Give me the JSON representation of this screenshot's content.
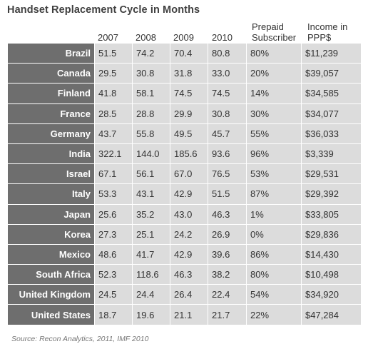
{
  "chart_data": {
    "type": "table",
    "title": "Handset Replacement Cycle in Months",
    "columns": [
      "2007",
      "2008",
      "2009",
      "2010",
      "Prepaid Subscriber",
      "Income in PPP$"
    ],
    "rows": [
      {
        "country": "Brazil",
        "values": [
          "51.5",
          "74.2",
          "70.4",
          "80.8",
          "80%",
          "$11,239"
        ]
      },
      {
        "country": "Canada",
        "values": [
          "29.5",
          "30.8",
          "31.8",
          "33.0",
          "20%",
          "$39,057"
        ]
      },
      {
        "country": "Finland",
        "values": [
          "41.8",
          "58.1",
          "74.5",
          "74.5",
          "14%",
          "$34,585"
        ]
      },
      {
        "country": "France",
        "values": [
          "28.5",
          "28.8",
          "29.9",
          "30.8",
          "30%",
          "$34,077"
        ]
      },
      {
        "country": "Germany",
        "values": [
          "43.7",
          "55.8",
          "49.5",
          "45.7",
          "55%",
          "$36,033"
        ]
      },
      {
        "country": "India",
        "values": [
          "322.1",
          "144.0",
          "185.6",
          "93.6",
          "96%",
          "$3,339"
        ]
      },
      {
        "country": "Israel",
        "values": [
          "67.1",
          "56.1",
          "67.0",
          "76.5",
          "53%",
          "$29,531"
        ]
      },
      {
        "country": "Italy",
        "values": [
          "53.3",
          "43.1",
          "42.9",
          "51.5",
          "87%",
          "$29,392"
        ]
      },
      {
        "country": "Japan",
        "values": [
          "25.6",
          "35.2",
          "43.0",
          "46.3",
          "1%",
          "$33,805"
        ]
      },
      {
        "country": "Korea",
        "values": [
          "27.3",
          "25.1",
          "24.2",
          "26.9",
          "0%",
          "$29,836"
        ]
      },
      {
        "country": "Mexico",
        "values": [
          "48.6",
          "41.7",
          "42.9",
          "39.6",
          "86%",
          "$14,430"
        ]
      },
      {
        "country": "South Africa",
        "values": [
          "52.3",
          "118.6",
          "46.3",
          "38.2",
          "80%",
          "$10,498"
        ]
      },
      {
        "country": "United Kingdom",
        "values": [
          "24.5",
          "24.4",
          "26.4",
          "22.4",
          "54%",
          "$34,920"
        ]
      },
      {
        "country": "United States",
        "values": [
          "18.7",
          "19.6",
          "21.1",
          "21.7",
          "22%",
          "$47,284"
        ]
      }
    ],
    "source": "Source: Recon Analytics, 2011, IMF 2010",
    "colors": {
      "country_cell": "#6e6e6e",
      "value_cell": "#dcdcdc"
    }
  },
  "header": {
    "col_2007": "2007",
    "col_2008": "2008",
    "col_2009": "2009",
    "col_2010": "2010",
    "prepaid_line1": "Prepaid",
    "prepaid_line2": "Subscriber",
    "income_line1": "Income in",
    "income_line2": "PPP$"
  }
}
